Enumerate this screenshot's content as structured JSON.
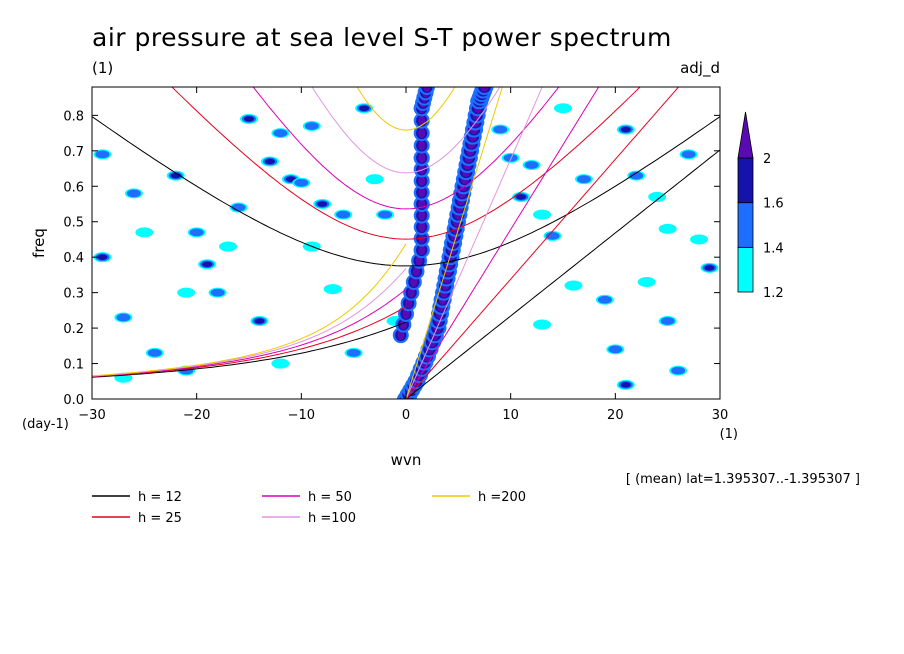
{
  "chart_data": {
    "type": "heatmap",
    "title": "air pressure at sea level S-T power spectrum",
    "unit_label": "(1)",
    "tag": "adj_d",
    "xlabel": "wvn",
    "ylabel": "freq",
    "x_unit": "(1)",
    "y_unit": "(day-1)",
    "xlim": [
      -30,
      30
    ],
    "ylim": [
      0,
      0.88
    ],
    "x_ticks": [
      -30,
      -20,
      -10,
      0,
      10,
      20,
      30
    ],
    "y_ticks": [
      0.0,
      0.1,
      0.2,
      0.3,
      0.4,
      0.5,
      0.6,
      0.7,
      0.8
    ],
    "y_tick_labels": [
      "0.0",
      "0.1",
      "0.2",
      "0.3",
      "0.4",
      "0.5",
      "0.6",
      "0.7",
      "0.8"
    ],
    "annotation": "[ (mean) lat=1.395307..-1.395307 ]",
    "colorbar": {
      "levels": [
        1.2,
        1.4,
        1.6,
        2
      ],
      "level_labels": [
        "1.2",
        "1.4",
        "1.6",
        "2"
      ],
      "colors": [
        "#00ffff",
        "#1e6eff",
        "#1414aa",
        "#5a0ab4"
      ]
    },
    "dispersion_curves": [
      {
        "label": "h = 12",
        "h": 12,
        "color": "#000000"
      },
      {
        "label": "h = 25",
        "h": 25,
        "color": "#e6001e"
      },
      {
        "label": "h = 50",
        "h": 50,
        "color": "#dc00b4"
      },
      {
        "label": "h =100",
        "h": 100,
        "color": "#e196e1"
      },
      {
        "label": "h =200",
        "h": 200,
        "color": "#f0c800"
      }
    ],
    "kelvin_ridge": [
      [
        0.0,
        0.0
      ],
      [
        1.0,
        0.05
      ],
      [
        2.0,
        0.12
      ],
      [
        3.0,
        0.2
      ],
      [
        3.5,
        0.28
      ],
      [
        4.0,
        0.36
      ],
      [
        4.5,
        0.44
      ],
      [
        5.0,
        0.52
      ],
      [
        5.5,
        0.6
      ],
      [
        6.0,
        0.68
      ],
      [
        6.5,
        0.76
      ],
      [
        7.0,
        0.84
      ],
      [
        7.5,
        0.88
      ]
    ],
    "secondary_ridge": [
      [
        -0.5,
        0.18
      ],
      [
        0.5,
        0.3
      ],
      [
        1.5,
        0.42
      ],
      [
        1.5,
        0.55
      ],
      [
        1.5,
        0.68
      ],
      [
        1.5,
        0.82
      ],
      [
        2.0,
        0.88
      ]
    ],
    "scattered_patches": [
      [
        -29,
        0.69,
        1.4
      ],
      [
        -29,
        0.4,
        1.6
      ],
      [
        -27,
        0.23,
        1.4
      ],
      [
        -26,
        0.58,
        1.4
      ],
      [
        -25,
        0.47,
        1.2
      ],
      [
        -24,
        0.13,
        1.4
      ],
      [
        -22,
        0.63,
        1.6
      ],
      [
        -21,
        0.3,
        1.2
      ],
      [
        -20,
        0.47,
        1.4
      ],
      [
        -19,
        0.38,
        1.6
      ],
      [
        -18,
        0.3,
        1.4
      ],
      [
        -17,
        0.43,
        1.2
      ],
      [
        -16,
        0.54,
        1.4
      ],
      [
        -15,
        0.79,
        1.6
      ],
      [
        -14,
        0.22,
        1.6
      ],
      [
        -13,
        0.67,
        1.6
      ],
      [
        -12,
        0.75,
        1.4
      ],
      [
        -11,
        0.62,
        1.6
      ],
      [
        -10,
        0.61,
        1.4
      ],
      [
        -9,
        0.43,
        1.2
      ],
      [
        -8,
        0.55,
        1.6
      ],
      [
        -7,
        0.31,
        1.2
      ],
      [
        -6,
        0.52,
        1.4
      ],
      [
        -5,
        0.13,
        1.4
      ],
      [
        -4,
        0.82,
        1.6
      ],
      [
        -3,
        0.62,
        1.2
      ],
      [
        -2,
        0.52,
        1.4
      ],
      [
        -1,
        0.22,
        1.2
      ],
      [
        9,
        0.76,
        1.4
      ],
      [
        10,
        0.68,
        1.4
      ],
      [
        11,
        0.57,
        1.6
      ],
      [
        12,
        0.66,
        1.4
      ],
      [
        13,
        0.52,
        1.2
      ],
      [
        14,
        0.46,
        1.4
      ],
      [
        15,
        0.82,
        1.2
      ],
      [
        17,
        0.62,
        1.4
      ],
      [
        19,
        0.28,
        1.4
      ],
      [
        21,
        0.76,
        1.6
      ],
      [
        22,
        0.63,
        1.4
      ],
      [
        23,
        0.33,
        1.2
      ],
      [
        25,
        0.48,
        1.2
      ],
      [
        25,
        0.22,
        1.4
      ],
      [
        27,
        0.69,
        1.4
      ],
      [
        28,
        0.45,
        1.2
      ],
      [
        29,
        0.37,
        1.6
      ],
      [
        20,
        0.14,
        1.4
      ],
      [
        26,
        0.08,
        1.4
      ],
      [
        21,
        0.04,
        1.6
      ],
      [
        -21,
        0.08,
        1.4
      ],
      [
        -27,
        0.06,
        1.2
      ],
      [
        -12,
        0.1,
        1.2
      ],
      [
        13,
        0.21,
        1.2
      ],
      [
        16,
        0.32,
        1.2
      ],
      [
        24,
        0.57,
        1.2
      ],
      [
        -9,
        0.77,
        1.4
      ]
    ]
  },
  "legend": {
    "items": [
      {
        "label": "h = 12",
        "color": "#000000"
      },
      {
        "label": "h = 25",
        "color": "#e6001e"
      },
      {
        "label": "h = 50",
        "color": "#dc00b4"
      },
      {
        "label": "h =100",
        "color": "#e196e1"
      },
      {
        "label": "h =200",
        "color": "#f0c800"
      }
    ]
  }
}
